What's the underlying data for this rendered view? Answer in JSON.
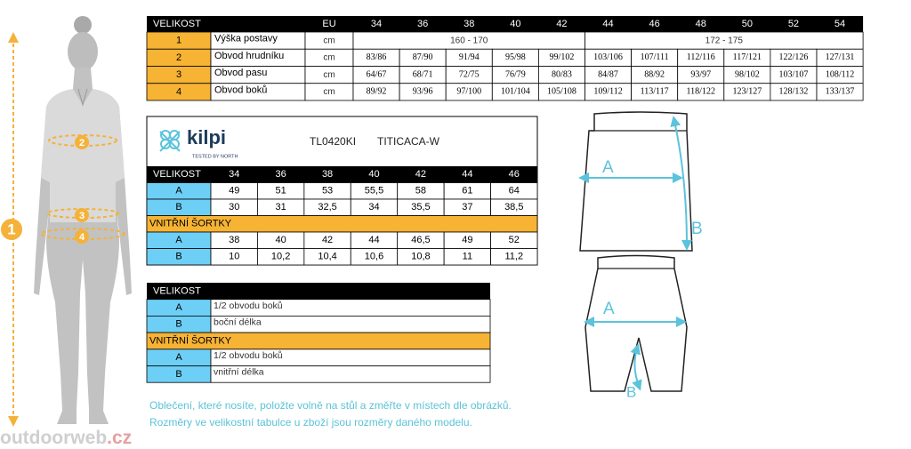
{
  "figure": {
    "markers": [
      "1",
      "2",
      "3",
      "4"
    ]
  },
  "size_table": {
    "header": [
      "VELIKOST",
      "EU",
      "34",
      "36",
      "38",
      "40",
      "42",
      "44",
      "46",
      "48",
      "50",
      "52",
      "54"
    ],
    "rows": [
      [
        "1",
        "Výška postavy",
        "cm",
        "160 - 170",
        "172 - 175"
      ],
      [
        "2",
        "Obvod hrudníku",
        "cm",
        "83/86",
        "87/90",
        "91/94",
        "95/98",
        "99/102",
        "103/106",
        "107/111",
        "112/116",
        "117/121",
        "122/126",
        "127/131"
      ],
      [
        "3",
        "Obvod pasu",
        "cm",
        "64/67",
        "68/71",
        "72/75",
        "76/79",
        "80/83",
        "84/87",
        "88/92",
        "93/97",
        "98/102",
        "103/107",
        "108/112"
      ],
      [
        "4",
        "Obvod boků",
        "cm",
        "89/92",
        "93/96",
        "97/100",
        "101/104",
        "105/108",
        "109/112",
        "113/117",
        "118/122",
        "123/127",
        "128/132",
        "133/137"
      ]
    ]
  },
  "product_table": {
    "brand": "kilpi",
    "tagline": "TESTED BY NORTH",
    "code": "TL0420KI",
    "model": "TITICACA-W",
    "header": [
      "VELIKOST",
      "34",
      "36",
      "38",
      "40",
      "42",
      "44",
      "46"
    ],
    "rows": [
      [
        "A",
        "49",
        "51",
        "53",
        "55,5",
        "58",
        "61",
        "64"
      ],
      [
        "B",
        "30",
        "31",
        "32,5",
        "34",
        "35,5",
        "37",
        "38,5"
      ]
    ],
    "section": "VNITŘNÍ ŠORTKY",
    "section_rows": [
      [
        "A",
        "38",
        "40",
        "42",
        "44",
        "46,5",
        "49",
        "52"
      ],
      [
        "B",
        "10",
        "10,2",
        "10,4",
        "10,6",
        "10,8",
        "11",
        "11,2"
      ]
    ]
  },
  "legend_table": {
    "header": "VELIKOST",
    "rows": [
      [
        "A",
        "1/2 obvodu boků"
      ],
      [
        "B",
        "boční délka"
      ]
    ],
    "section": "VNITŘNÍ ŠORTKY",
    "section_rows": [
      [
        "A",
        "1/2 obvodu boků"
      ],
      [
        "B",
        "vnitřní délka"
      ]
    ]
  },
  "note": [
    "Oblečení, které nosíte, položte volně na stůl a změřte v místech dle obrázků.",
    "Rozměry ve velikostní tabulce u zboží jsou rozměry daného modelu."
  ],
  "diagram": {
    "skirt": {
      "a": "A",
      "b": "B"
    },
    "shorts": {
      "a": "A",
      "b": "B"
    }
  },
  "watermark": {
    "name": "outdoorweb",
    "tld": ".cz"
  }
}
